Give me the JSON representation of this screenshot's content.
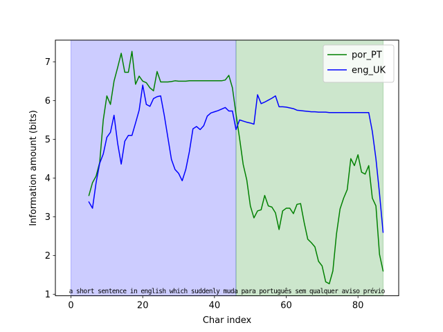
{
  "chart_data": {
    "type": "line",
    "xlabel": "Char index",
    "ylabel": "Information amount (bits)",
    "xlim": [
      -4.35,
      91.35
    ],
    "ylim": [
      0.96,
      7.56
    ],
    "xticks": [
      0,
      20,
      40,
      60,
      80
    ],
    "yticks": [
      1,
      2,
      3,
      4,
      5,
      6,
      7
    ],
    "grid": false,
    "legend": "top-right",
    "regions": [
      {
        "x0": 0,
        "x1": 46,
        "color": "#0000ff",
        "opacity": 0.2
      },
      {
        "x0": 46,
        "x1": 87,
        "color": "#008000",
        "opacity": 0.2
      }
    ],
    "sentence": "a short sentence in english which suddenly muda para português sem qualquer aviso prévio",
    "series": [
      {
        "name": "por_PT",
        "color": "#008000",
        "x": [
          5,
          6,
          7,
          8,
          9,
          10,
          11,
          12,
          13,
          14,
          15,
          16,
          17,
          18,
          19,
          20,
          21,
          22,
          23,
          24,
          25,
          26,
          27,
          28,
          29,
          30,
          31,
          32,
          33,
          34,
          35,
          36,
          37,
          38,
          39,
          40,
          41,
          42,
          43,
          44,
          45,
          46,
          47,
          48,
          49,
          50,
          51,
          52,
          53,
          54,
          55,
          56,
          57,
          58,
          59,
          60,
          61,
          62,
          63,
          64,
          65,
          66,
          67,
          68,
          69,
          70,
          71,
          72,
          73,
          74,
          75,
          76,
          77,
          78,
          79,
          80,
          81,
          82,
          83,
          84,
          85,
          86,
          87
        ],
        "values": [
          3.55,
          3.88,
          4.05,
          4.4,
          5.5,
          6.12,
          5.9,
          6.5,
          6.85,
          7.22,
          6.73,
          6.73,
          7.27,
          6.42,
          6.63,
          6.5,
          6.46,
          6.33,
          6.25,
          6.75,
          6.48,
          6.48,
          6.48,
          6.49,
          6.51,
          6.5,
          6.5,
          6.5,
          6.51,
          6.51,
          6.51,
          6.51,
          6.51,
          6.51,
          6.51,
          6.51,
          6.51,
          6.51,
          6.53,
          6.65,
          6.33,
          5.65,
          5.02,
          4.35,
          3.95,
          3.28,
          2.97,
          3.15,
          3.18,
          3.55,
          3.28,
          3.25,
          3.1,
          2.67,
          3.15,
          3.22,
          3.22,
          3.08,
          3.32,
          3.34,
          2.85,
          2.42,
          2.33,
          2.22,
          1.85,
          1.73,
          1.32,
          1.27,
          1.6,
          2.55,
          3.2,
          3.48,
          3.7,
          4.5,
          4.32,
          4.6,
          4.15,
          4.1,
          4.32,
          3.48,
          3.28,
          2.03,
          1.6
        ]
      },
      {
        "name": "eng_UK",
        "color": "#0000ff",
        "x": [
          5,
          6,
          7,
          8,
          9,
          10,
          11,
          12,
          13,
          14,
          15,
          16,
          17,
          18,
          19,
          20,
          21,
          22,
          23,
          24,
          25,
          26,
          27,
          28,
          29,
          30,
          31,
          32,
          33,
          34,
          35,
          36,
          37,
          38,
          39,
          40,
          41,
          42,
          43,
          44,
          45,
          46,
          47,
          48,
          49,
          50,
          51,
          52,
          53,
          54,
          55,
          56,
          57,
          58,
          59,
          60,
          61,
          62,
          63,
          64,
          65,
          66,
          67,
          68,
          69,
          70,
          71,
          72,
          73,
          74,
          75,
          76,
          77,
          78,
          79,
          80,
          81,
          82,
          83,
          84,
          85,
          86,
          87
        ],
        "values": [
          3.38,
          3.22,
          3.88,
          4.38,
          4.62,
          5.05,
          5.18,
          5.62,
          4.9,
          4.36,
          4.95,
          5.1,
          5.1,
          5.42,
          5.75,
          6.4,
          5.9,
          5.85,
          6.05,
          6.1,
          6.12,
          5.62,
          5.05,
          4.48,
          4.22,
          4.12,
          3.93,
          4.22,
          4.68,
          5.27,
          5.33,
          5.25,
          5.35,
          5.6,
          5.68,
          5.71,
          5.74,
          5.78,
          5.82,
          5.73,
          5.73,
          5.25,
          5.5,
          5.47,
          5.44,
          5.42,
          5.39,
          6.15,
          5.92,
          5.96,
          6.01,
          6.06,
          6.12,
          5.84,
          5.84,
          5.83,
          5.81,
          5.79,
          5.75,
          5.74,
          5.73,
          5.72,
          5.71,
          5.71,
          5.7,
          5.7,
          5.7,
          5.69,
          5.69,
          5.69,
          5.69,
          5.69,
          5.69,
          5.69,
          5.69,
          5.69,
          5.69,
          5.69,
          5.69,
          5.2,
          4.5,
          3.6,
          2.6
        ]
      }
    ]
  }
}
